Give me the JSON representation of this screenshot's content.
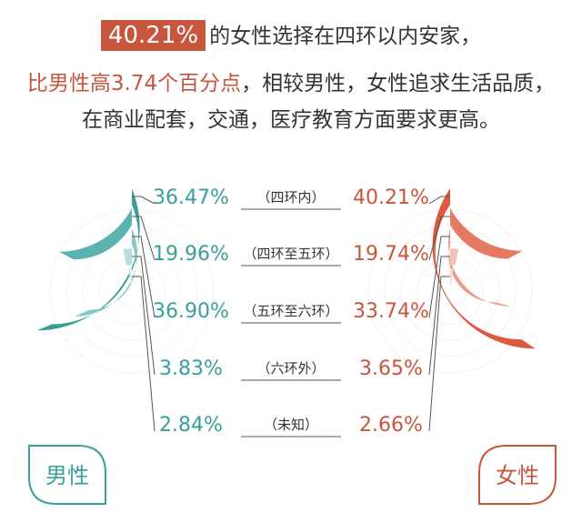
{
  "header": {
    "line1_highlight": "40.21%",
    "line1_text": "的女性选择在四环以内安家，",
    "line2_highlight": "比男性高3.74个百分点",
    "line2_text": "，相较男性，女性追求生活品质，",
    "line3_text": "在商业配套，交通，医疗教育方面要求更高。"
  },
  "colors": {
    "male": [
      "#3a9e9a",
      "#5ab3ae",
      "#87c8c4",
      "#b7deda",
      "#d6ecea"
    ],
    "female": [
      "#dd5a3f",
      "#e57a62",
      "#ec9d8a",
      "#f2c2b6",
      "#f7dcd5"
    ],
    "male_text": "#3a9e9a",
    "female_text": "#c8563f",
    "highlight": "#c8563f"
  },
  "chart_data": {
    "type": "radial-bar",
    "categories": [
      "（四环内）",
      "（四环至五环）",
      "（五环至六环）",
      "（六环外）",
      "（未知）"
    ],
    "series": [
      {
        "name": "男性",
        "values": [
          36.47,
          19.96,
          36.9,
          3.83,
          2.84
        ],
        "labels": [
          "36.47%",
          "19.96%",
          "36.90%",
          "3.83%",
          "2.84%"
        ]
      },
      {
        "name": "女性",
        "values": [
          40.21,
          19.74,
          33.74,
          3.65,
          2.66
        ],
        "labels": [
          "40.21%",
          "19.74%",
          "33.74%",
          "3.65%",
          "2.66%"
        ]
      }
    ]
  }
}
